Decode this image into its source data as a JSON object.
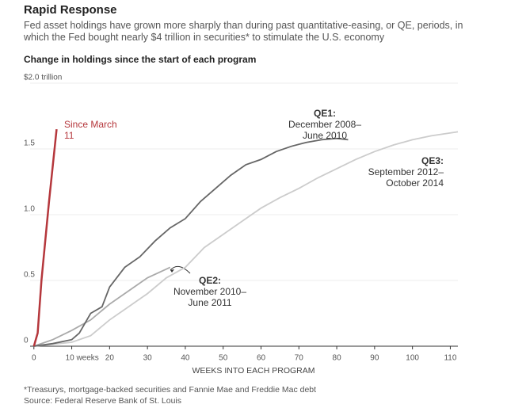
{
  "header": {
    "title": "Rapid Response",
    "subtitle": "Fed asset holdings have grown more sharply than during past quantitative-easing, or QE, periods, in which the Fed bought nearly $4 trillion in securities* to stimulate the U.S. economy",
    "chart_label": "Change in holdings since the start of each program"
  },
  "chart_data": {
    "type": "line",
    "xlabel": "WEEKS INTO EACH PROGRAM",
    "xlim": [
      -1,
      112
    ],
    "xticks": [
      0,
      {
        "value": 10,
        "label": "10 weeks"
      },
      20,
      30,
      40,
      50,
      60,
      70,
      80,
      90,
      100,
      110
    ],
    "ylim": [
      0,
      2
    ],
    "yticks": [
      0,
      0.5,
      {
        "value": 1,
        "label": "1.0"
      },
      1.5,
      {
        "value": 2,
        "label": "$2.0 trillion"
      }
    ],
    "grid": true,
    "series": [
      {
        "name": "Since March 11",
        "color": "#b5373c",
        "x": [
          0,
          1,
          2,
          4,
          6
        ],
        "values": [
          0,
          0.1,
          0.5,
          1.1,
          1.65
        ]
      },
      {
        "name": "QE1:",
        "note": "December 2008–June 2010",
        "color": "#666666",
        "x": [
          0,
          5,
          10,
          12,
          15,
          18,
          20,
          24,
          28,
          32,
          36,
          40,
          44,
          48,
          52,
          56,
          60,
          64,
          68,
          72,
          76,
          80,
          83
        ],
        "values": [
          0,
          0.02,
          0.05,
          0.1,
          0.25,
          0.3,
          0.45,
          0.6,
          0.68,
          0.8,
          0.9,
          0.97,
          1.1,
          1.2,
          1.3,
          1.38,
          1.42,
          1.48,
          1.52,
          1.55,
          1.57,
          1.58,
          1.57
        ]
      },
      {
        "name": "QE2:",
        "note": "November 2010–June 2011",
        "color": "#aaaaaa",
        "x": [
          0,
          5,
          10,
          15,
          20,
          25,
          30,
          36
        ],
        "values": [
          0,
          0.05,
          0.12,
          0.2,
          0.32,
          0.42,
          0.52,
          0.6
        ]
      },
      {
        "name": "QE3:",
        "note": "September 2012–October 2014",
        "color": "#cccccc",
        "x": [
          0,
          10,
          15,
          20,
          25,
          30,
          35,
          40,
          45,
          50,
          55,
          60,
          65,
          70,
          75,
          80,
          85,
          90,
          95,
          100,
          105,
          112
        ],
        "values": [
          0,
          0.03,
          0.08,
          0.2,
          0.3,
          0.4,
          0.52,
          0.6,
          0.75,
          0.85,
          0.95,
          1.05,
          1.13,
          1.2,
          1.28,
          1.35,
          1.42,
          1.48,
          1.53,
          1.57,
          1.6,
          1.63
        ]
      }
    ]
  },
  "footer": {
    "note": "*Treasurys, mortgage-backed securities and Fannie Mae and Freddie Mac debt",
    "source": "Source: Federal Reserve Bank of St. Louis"
  }
}
